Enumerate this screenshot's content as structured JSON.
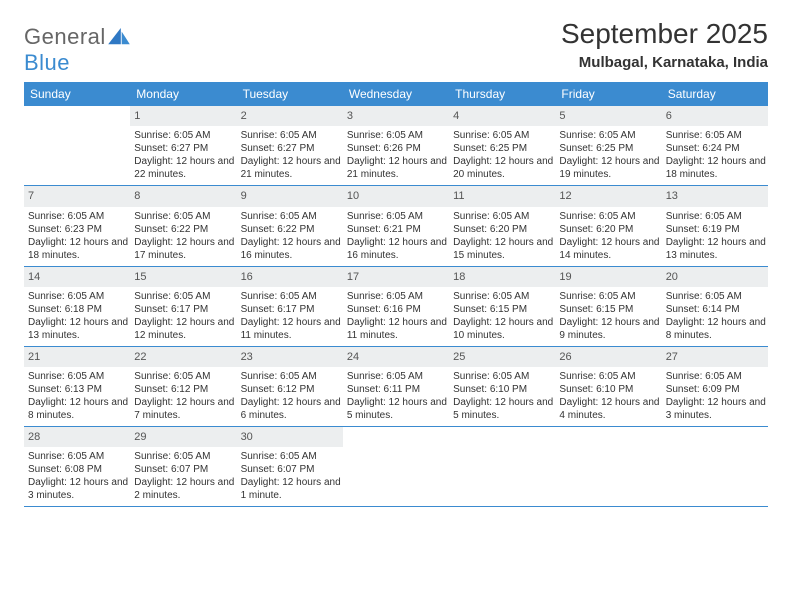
{
  "brand": {
    "general": "General",
    "blue": "Blue"
  },
  "title": "September 2025",
  "location": "Mulbagal, Karnataka, India",
  "dow": [
    "Sunday",
    "Monday",
    "Tuesday",
    "Wednesday",
    "Thursday",
    "Friday",
    "Saturday"
  ],
  "colors": {
    "header_bg": "#3b8bd0",
    "daynum_bg": "#eceeef",
    "week_border": "#3b8bd0",
    "text": "#333333",
    "logo_blue": "#3b8bd0",
    "logo_gray": "#666666"
  },
  "typography": {
    "title_fontsize": 28,
    "location_fontsize": 15,
    "dow_fontsize": 12,
    "daynum_fontsize": 11,
    "cell_fontsize": 10
  },
  "weeks": [
    [
      {
        "empty": true
      },
      {
        "day": "1",
        "sunrise": "Sunrise: 6:05 AM",
        "sunset": "Sunset: 6:27 PM",
        "daylight": "Daylight: 12 hours and 22 minutes."
      },
      {
        "day": "2",
        "sunrise": "Sunrise: 6:05 AM",
        "sunset": "Sunset: 6:27 PM",
        "daylight": "Daylight: 12 hours and 21 minutes."
      },
      {
        "day": "3",
        "sunrise": "Sunrise: 6:05 AM",
        "sunset": "Sunset: 6:26 PM",
        "daylight": "Daylight: 12 hours and 21 minutes."
      },
      {
        "day": "4",
        "sunrise": "Sunrise: 6:05 AM",
        "sunset": "Sunset: 6:25 PM",
        "daylight": "Daylight: 12 hours and 20 minutes."
      },
      {
        "day": "5",
        "sunrise": "Sunrise: 6:05 AM",
        "sunset": "Sunset: 6:25 PM",
        "daylight": "Daylight: 12 hours and 19 minutes."
      },
      {
        "day": "6",
        "sunrise": "Sunrise: 6:05 AM",
        "sunset": "Sunset: 6:24 PM",
        "daylight": "Daylight: 12 hours and 18 minutes."
      }
    ],
    [
      {
        "day": "7",
        "sunrise": "Sunrise: 6:05 AM",
        "sunset": "Sunset: 6:23 PM",
        "daylight": "Daylight: 12 hours and 18 minutes."
      },
      {
        "day": "8",
        "sunrise": "Sunrise: 6:05 AM",
        "sunset": "Sunset: 6:22 PM",
        "daylight": "Daylight: 12 hours and 17 minutes."
      },
      {
        "day": "9",
        "sunrise": "Sunrise: 6:05 AM",
        "sunset": "Sunset: 6:22 PM",
        "daylight": "Daylight: 12 hours and 16 minutes."
      },
      {
        "day": "10",
        "sunrise": "Sunrise: 6:05 AM",
        "sunset": "Sunset: 6:21 PM",
        "daylight": "Daylight: 12 hours and 16 minutes."
      },
      {
        "day": "11",
        "sunrise": "Sunrise: 6:05 AM",
        "sunset": "Sunset: 6:20 PM",
        "daylight": "Daylight: 12 hours and 15 minutes."
      },
      {
        "day": "12",
        "sunrise": "Sunrise: 6:05 AM",
        "sunset": "Sunset: 6:20 PM",
        "daylight": "Daylight: 12 hours and 14 minutes."
      },
      {
        "day": "13",
        "sunrise": "Sunrise: 6:05 AM",
        "sunset": "Sunset: 6:19 PM",
        "daylight": "Daylight: 12 hours and 13 minutes."
      }
    ],
    [
      {
        "day": "14",
        "sunrise": "Sunrise: 6:05 AM",
        "sunset": "Sunset: 6:18 PM",
        "daylight": "Daylight: 12 hours and 13 minutes."
      },
      {
        "day": "15",
        "sunrise": "Sunrise: 6:05 AM",
        "sunset": "Sunset: 6:17 PM",
        "daylight": "Daylight: 12 hours and 12 minutes."
      },
      {
        "day": "16",
        "sunrise": "Sunrise: 6:05 AM",
        "sunset": "Sunset: 6:17 PM",
        "daylight": "Daylight: 12 hours and 11 minutes."
      },
      {
        "day": "17",
        "sunrise": "Sunrise: 6:05 AM",
        "sunset": "Sunset: 6:16 PM",
        "daylight": "Daylight: 12 hours and 11 minutes."
      },
      {
        "day": "18",
        "sunrise": "Sunrise: 6:05 AM",
        "sunset": "Sunset: 6:15 PM",
        "daylight": "Daylight: 12 hours and 10 minutes."
      },
      {
        "day": "19",
        "sunrise": "Sunrise: 6:05 AM",
        "sunset": "Sunset: 6:15 PM",
        "daylight": "Daylight: 12 hours and 9 minutes."
      },
      {
        "day": "20",
        "sunrise": "Sunrise: 6:05 AM",
        "sunset": "Sunset: 6:14 PM",
        "daylight": "Daylight: 12 hours and 8 minutes."
      }
    ],
    [
      {
        "day": "21",
        "sunrise": "Sunrise: 6:05 AM",
        "sunset": "Sunset: 6:13 PM",
        "daylight": "Daylight: 12 hours and 8 minutes."
      },
      {
        "day": "22",
        "sunrise": "Sunrise: 6:05 AM",
        "sunset": "Sunset: 6:12 PM",
        "daylight": "Daylight: 12 hours and 7 minutes."
      },
      {
        "day": "23",
        "sunrise": "Sunrise: 6:05 AM",
        "sunset": "Sunset: 6:12 PM",
        "daylight": "Daylight: 12 hours and 6 minutes."
      },
      {
        "day": "24",
        "sunrise": "Sunrise: 6:05 AM",
        "sunset": "Sunset: 6:11 PM",
        "daylight": "Daylight: 12 hours and 5 minutes."
      },
      {
        "day": "25",
        "sunrise": "Sunrise: 6:05 AM",
        "sunset": "Sunset: 6:10 PM",
        "daylight": "Daylight: 12 hours and 5 minutes."
      },
      {
        "day": "26",
        "sunrise": "Sunrise: 6:05 AM",
        "sunset": "Sunset: 6:10 PM",
        "daylight": "Daylight: 12 hours and 4 minutes."
      },
      {
        "day": "27",
        "sunrise": "Sunrise: 6:05 AM",
        "sunset": "Sunset: 6:09 PM",
        "daylight": "Daylight: 12 hours and 3 minutes."
      }
    ],
    [
      {
        "day": "28",
        "sunrise": "Sunrise: 6:05 AM",
        "sunset": "Sunset: 6:08 PM",
        "daylight": "Daylight: 12 hours and 3 minutes."
      },
      {
        "day": "29",
        "sunrise": "Sunrise: 6:05 AM",
        "sunset": "Sunset: 6:07 PM",
        "daylight": "Daylight: 12 hours and 2 minutes."
      },
      {
        "day": "30",
        "sunrise": "Sunrise: 6:05 AM",
        "sunset": "Sunset: 6:07 PM",
        "daylight": "Daylight: 12 hours and 1 minute."
      },
      {
        "empty": true
      },
      {
        "empty": true
      },
      {
        "empty": true
      },
      {
        "empty": true
      }
    ]
  ]
}
